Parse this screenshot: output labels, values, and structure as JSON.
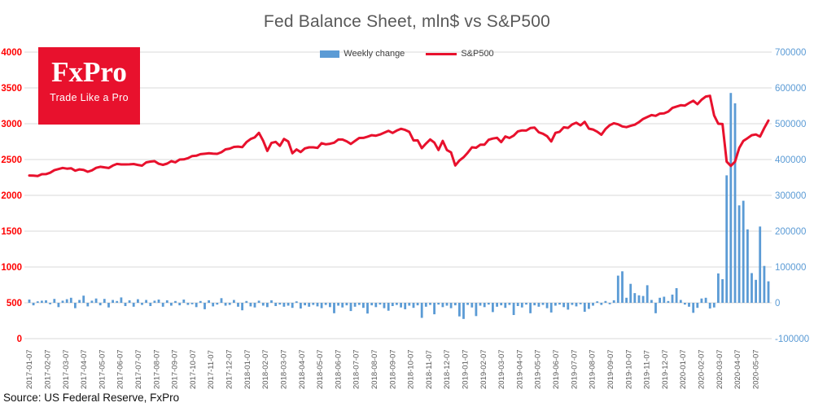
{
  "title": "Fed Balance Sheet, mln$ vs S&P500",
  "source": "Source: US Federal Reserve, FxPro",
  "logo": {
    "name": "FxPro",
    "tagline": "Trade Like a Pro",
    "bg_color": "#e8112d"
  },
  "legend": [
    {
      "label": "Weekly change",
      "type": "bar",
      "color": "#5B9BD5"
    },
    {
      "label": "S&P500",
      "type": "line",
      "color": "#e8112d"
    }
  ],
  "chart_data": {
    "type": "combo",
    "title": "Fed Balance Sheet, mln$ vs S&P500",
    "grid": true,
    "legend_position": "top",
    "x_labels": [
      "2017-01-07",
      "2017-02-07",
      "2017-03-07",
      "2017-04-07",
      "2017-05-07",
      "2017-06-07",
      "2017-07-07",
      "2017-08-07",
      "2017-09-07",
      "2017-10-07",
      "2017-11-07",
      "2017-12-07",
      "2018-01-07",
      "2018-02-07",
      "2018-03-07",
      "2018-04-07",
      "2018-05-07",
      "2018-06-07",
      "2018-07-07",
      "2018-08-07",
      "2018-09-07",
      "2018-10-07",
      "2018-11-07",
      "2018-12-07",
      "2019-01-07",
      "2019-02-07",
      "2019-03-07",
      "2019-04-07",
      "2019-05-07",
      "2019-06-07",
      "2019-07-07",
      "2019-08-07",
      "2019-09-07",
      "2019-10-07",
      "2019-11-07",
      "2019-12-07",
      "2020-01-07",
      "2020-02-07",
      "2020-03-07",
      "2020-04-07",
      "2020-05-07"
    ],
    "weeks_per_label": 4.348,
    "x_label_color": "#595959",
    "grid_color": "#d9d9d9",
    "left_axis": {
      "ticks": [
        0,
        500,
        1000,
        1500,
        2000,
        2500,
        3000,
        3500,
        4000
      ],
      "range": [
        0,
        4000
      ],
      "color": "#ff0000"
    },
    "right_axis": {
      "ticks": [
        -100000,
        0,
        100000,
        200000,
        300000,
        400000,
        500000,
        600000,
        700000
      ],
      "range": [
        -100000,
        700000
      ],
      "color": "#5B9BD5"
    },
    "series": [
      {
        "name": "Weekly change",
        "type": "bar",
        "axis": "right",
        "color": "#5B9BD5",
        "values": [
          9000,
          -7000,
          4000,
          6000,
          7000,
          -4000,
          11000,
          -12000,
          6000,
          10000,
          14000,
          -15000,
          8000,
          20000,
          -10000,
          6000,
          12000,
          -7000,
          11000,
          -13000,
          8000,
          5000,
          15000,
          -9000,
          7000,
          -11000,
          10000,
          -6000,
          8000,
          -9000,
          6000,
          9000,
          -11000,
          7000,
          -8000,
          5000,
          -7000,
          9000,
          -6000,
          -4000,
          -12000,
          5000,
          -18000,
          7000,
          -10000,
          -5000,
          13000,
          -8000,
          -6000,
          8000,
          -11000,
          -21000,
          5000,
          -10000,
          -13000,
          6000,
          -8000,
          -12000,
          7000,
          -9000,
          -5000,
          -11000,
          -8000,
          -14000,
          4000,
          -16000,
          -7000,
          -11000,
          -6000,
          -10000,
          -15000,
          -6000,
          -12000,
          -29000,
          -8000,
          -13000,
          -7000,
          -23000,
          -11000,
          -6000,
          -14000,
          -30000,
          -7000,
          -12000,
          -5000,
          -15000,
          -22000,
          -9000,
          -6000,
          -13000,
          -18000,
          -8000,
          -14000,
          -7000,
          -42000,
          -11000,
          -6000,
          -32000,
          -5000,
          -12000,
          -8000,
          -15000,
          -7000,
          -38000,
          -45000,
          -6000,
          -13000,
          -37000,
          -8000,
          -12000,
          -5000,
          -26000,
          -11000,
          -7000,
          -14000,
          -6000,
          -34000,
          -9000,
          -13000,
          -5000,
          -29000,
          -7000,
          -11000,
          -6000,
          -15000,
          -27000,
          -8000,
          -5000,
          -12000,
          -19000,
          -6000,
          -10000,
          -4000,
          -25000,
          -17000,
          -8000,
          4000,
          -6000,
          5000,
          -4000,
          7000,
          76000,
          88000,
          14000,
          53000,
          27000,
          21000,
          19000,
          49000,
          8000,
          -29000,
          14000,
          17000,
          5000,
          23000,
          41000,
          8000,
          -5000,
          -11000,
          -28000,
          -14000,
          12000,
          14000,
          -16000,
          -13000,
          82000,
          66000,
          356000,
          586000,
          557000,
          272000,
          285000,
          205000,
          83000,
          64000,
          213000,
          103000,
          60000
        ]
      },
      {
        "name": "S&P500",
        "type": "line",
        "axis": "left",
        "color": "#e8112d",
        "values": [
          2277,
          2275,
          2271,
          2295,
          2297,
          2316,
          2351,
          2367,
          2383,
          2373,
          2378,
          2344,
          2363,
          2356,
          2329,
          2349,
          2384,
          2399,
          2391,
          2382,
          2416,
          2439,
          2432,
          2432,
          2433,
          2438,
          2425,
          2415,
          2460,
          2472,
          2477,
          2441,
          2426,
          2443,
          2477,
          2461,
          2500,
          2502,
          2519,
          2549,
          2553,
          2575,
          2581,
          2588,
          2582,
          2579,
          2602,
          2642,
          2652,
          2676,
          2681,
          2673,
          2743,
          2786,
          2810,
          2873,
          2762,
          2620,
          2732,
          2747,
          2691,
          2787,
          2752,
          2588,
          2641,
          2604,
          2656,
          2670,
          2670,
          2663,
          2728,
          2713,
          2721,
          2735,
          2779,
          2780,
          2755,
          2718,
          2760,
          2801,
          2802,
          2819,
          2840,
          2833,
          2850,
          2875,
          2901,
          2872,
          2905,
          2930,
          2914,
          2886,
          2767,
          2768,
          2659,
          2723,
          2781,
          2736,
          2633,
          2760,
          2633,
          2600,
          2417,
          2486,
          2532,
          2596,
          2671,
          2665,
          2707,
          2708,
          2776,
          2793,
          2803,
          2743,
          2822,
          2801,
          2834,
          2893,
          2907,
          2905,
          2940,
          2946,
          2881,
          2860,
          2826,
          2752,
          2873,
          2887,
          2950,
          2942,
          2990,
          3014,
          2977,
          3026,
          2932,
          2919,
          2889,
          2847,
          2926,
          2979,
          3007,
          2992,
          2962,
          2952,
          2970,
          2986,
          3023,
          3067,
          3093,
          3120,
          3110,
          3141,
          3146,
          3169,
          3221,
          3240,
          3258,
          3253,
          3289,
          3321,
          3273,
          3335,
          3380,
          3390,
          3116,
          3000,
          2996,
          2470,
          2411,
          2470,
          2660,
          2760,
          2799,
          2840,
          2850,
          2820,
          2940,
          3044
        ]
      }
    ]
  }
}
